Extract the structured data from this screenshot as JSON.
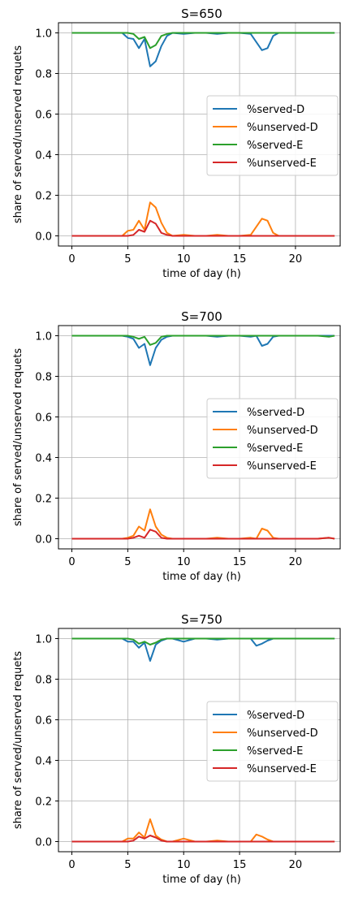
{
  "chart_data": [
    {
      "type": "line",
      "title": "S=650",
      "xlabel": "time of day (h)",
      "ylabel": "share of served/unserved requets",
      "xlim": [
        -1.2,
        24
      ],
      "ylim": [
        -0.05,
        1.05
      ],
      "xticks": [
        0,
        5,
        10,
        15,
        20
      ],
      "yticks": [
        0.0,
        0.2,
        0.4,
        0.6,
        0.8,
        1.0
      ],
      "grid": true,
      "legend": "center-right",
      "series": [
        {
          "name": "%served-D",
          "color": "#1f77b4",
          "x": [
            0,
            1,
            2,
            3,
            4,
            4.5,
            5,
            5.5,
            6,
            6.5,
            7,
            7.5,
            8,
            8.5,
            9,
            10,
            11,
            12,
            13,
            14,
            15,
            16,
            16.5,
            17,
            17.5,
            18,
            18.5,
            19,
            20,
            21,
            22,
            23,
            23.5
          ],
          "y": [
            1.0,
            1.0,
            1.0,
            1.0,
            1.0,
            1.0,
            0.975,
            0.97,
            0.925,
            0.97,
            0.835,
            0.86,
            0.935,
            0.985,
            1.0,
            0.995,
            1.0,
            1.0,
            0.995,
            1.0,
            1.0,
            0.995,
            0.955,
            0.915,
            0.925,
            0.985,
            1.0,
            1.0,
            1.0,
            1.0,
            1.0,
            1.0,
            1.0
          ]
        },
        {
          "name": "%unserved-D",
          "color": "#ff7f0e",
          "x": [
            0,
            1,
            2,
            3,
            4,
            4.5,
            5,
            5.5,
            6,
            6.5,
            7,
            7.5,
            8,
            8.5,
            9,
            10,
            11,
            12,
            13,
            14,
            15,
            16,
            16.5,
            17,
            17.5,
            18,
            18.5,
            19,
            20,
            21,
            22,
            23,
            23.5
          ],
          "y": [
            0.0,
            0.0,
            0.0,
            0.0,
            0.0,
            0.0,
            0.025,
            0.03,
            0.075,
            0.03,
            0.165,
            0.14,
            0.065,
            0.015,
            0.0,
            0.005,
            0.0,
            0.0,
            0.005,
            0.0,
            0.0,
            0.005,
            0.045,
            0.085,
            0.075,
            0.015,
            0.0,
            0.0,
            0.0,
            0.0,
            0.0,
            0.0,
            0.0
          ]
        },
        {
          "name": "%served-E",
          "color": "#2ca02c",
          "x": [
            0,
            1,
            2,
            3,
            4,
            4.5,
            5,
            5.5,
            6,
            6.5,
            7,
            7.5,
            8,
            8.5,
            9,
            10,
            11,
            12,
            13,
            14,
            15,
            16,
            16.5,
            17,
            17.5,
            18,
            18.5,
            19,
            20,
            21,
            22,
            23,
            23.5
          ],
          "y": [
            1.0,
            1.0,
            1.0,
            1.0,
            1.0,
            1.0,
            1.0,
            0.995,
            0.97,
            0.98,
            0.925,
            0.94,
            0.985,
            0.995,
            1.0,
            1.0,
            1.0,
            1.0,
            1.0,
            1.0,
            1.0,
            1.0,
            1.0,
            1.0,
            1.0,
            1.0,
            1.0,
            1.0,
            1.0,
            1.0,
            1.0,
            1.0,
            1.0
          ]
        },
        {
          "name": "%unserved-E",
          "color": "#d62728",
          "x": [
            0,
            1,
            2,
            3,
            4,
            4.5,
            5,
            5.5,
            6,
            6.5,
            7,
            7.5,
            8,
            8.5,
            9,
            10,
            11,
            12,
            13,
            14,
            15,
            16,
            16.5,
            17,
            17.5,
            18,
            18.5,
            19,
            20,
            21,
            22,
            23,
            23.5
          ],
          "y": [
            0.0,
            0.0,
            0.0,
            0.0,
            0.0,
            0.0,
            0.0,
            0.005,
            0.03,
            0.02,
            0.075,
            0.06,
            0.015,
            0.005,
            0.0,
            0.0,
            0.0,
            0.0,
            0.0,
            0.0,
            0.0,
            0.0,
            0.0,
            0.0,
            0.0,
            0.0,
            0.0,
            0.0,
            0.0,
            0.0,
            0.0,
            0.0,
            0.0
          ]
        }
      ]
    },
    {
      "type": "line",
      "title": "S=700",
      "xlabel": "time of day (h)",
      "ylabel": "share of served/unserved requets",
      "xlim": [
        -1.2,
        24
      ],
      "ylim": [
        -0.05,
        1.05
      ],
      "xticks": [
        0,
        5,
        10,
        15,
        20
      ],
      "yticks": [
        0.0,
        0.2,
        0.4,
        0.6,
        0.8,
        1.0
      ],
      "grid": true,
      "legend": "center-right",
      "series": [
        {
          "name": "%served-D",
          "color": "#1f77b4",
          "x": [
            0,
            1,
            2,
            3,
            4,
            4.5,
            5,
            5.5,
            6,
            6.5,
            7,
            7.5,
            8,
            8.5,
            9,
            10,
            11,
            12,
            13,
            14,
            15,
            16,
            16.5,
            17,
            17.5,
            18,
            18.5,
            19,
            20,
            21,
            22,
            23,
            23.5
          ],
          "y": [
            1.0,
            1.0,
            1.0,
            1.0,
            1.0,
            1.0,
            0.995,
            0.985,
            0.94,
            0.96,
            0.855,
            0.94,
            0.98,
            0.995,
            1.0,
            1.0,
            1.0,
            1.0,
            0.995,
            1.0,
            1.0,
            0.995,
            1.0,
            0.95,
            0.96,
            0.995,
            1.0,
            1.0,
            1.0,
            1.0,
            1.0,
            1.0,
            1.0
          ]
        },
        {
          "name": "%unserved-D",
          "color": "#ff7f0e",
          "x": [
            0,
            1,
            2,
            3,
            4,
            4.5,
            5,
            5.5,
            6,
            6.5,
            7,
            7.5,
            8,
            8.5,
            9,
            10,
            11,
            12,
            13,
            14,
            15,
            16,
            16.5,
            17,
            17.5,
            18,
            18.5,
            19,
            20,
            21,
            22,
            23,
            23.5
          ],
          "y": [
            0.0,
            0.0,
            0.0,
            0.0,
            0.0,
            0.0,
            0.005,
            0.015,
            0.06,
            0.04,
            0.145,
            0.06,
            0.02,
            0.005,
            0.0,
            0.0,
            0.0,
            0.0,
            0.005,
            0.0,
            0.0,
            0.005,
            0.0,
            0.05,
            0.04,
            0.005,
            0.0,
            0.0,
            0.0,
            0.0,
            0.0,
            0.005,
            0.0
          ]
        },
        {
          "name": "%served-E",
          "color": "#2ca02c",
          "x": [
            0,
            1,
            2,
            3,
            4,
            4.5,
            5,
            5.5,
            6,
            6.5,
            7,
            7.5,
            8,
            8.5,
            9,
            10,
            11,
            12,
            13,
            14,
            15,
            16,
            16.5,
            17,
            17.5,
            18,
            18.5,
            19,
            20,
            21,
            22,
            23,
            23.5
          ],
          "y": [
            1.0,
            1.0,
            1.0,
            1.0,
            1.0,
            1.0,
            1.0,
            0.995,
            0.985,
            0.995,
            0.955,
            0.965,
            0.995,
            1.0,
            1.0,
            1.0,
            1.0,
            1.0,
            1.0,
            1.0,
            1.0,
            1.0,
            1.0,
            1.0,
            1.0,
            1.0,
            1.0,
            1.0,
            1.0,
            1.0,
            1.0,
            0.995,
            1.0
          ]
        },
        {
          "name": "%unserved-E",
          "color": "#d62728",
          "x": [
            0,
            1,
            2,
            3,
            4,
            4.5,
            5,
            5.5,
            6,
            6.5,
            7,
            7.5,
            8,
            8.5,
            9,
            10,
            11,
            12,
            13,
            14,
            15,
            16,
            16.5,
            17,
            17.5,
            18,
            18.5,
            19,
            20,
            21,
            22,
            23,
            23.5
          ],
          "y": [
            0.0,
            0.0,
            0.0,
            0.0,
            0.0,
            0.0,
            0.0,
            0.005,
            0.015,
            0.005,
            0.045,
            0.035,
            0.005,
            0.0,
            0.0,
            0.0,
            0.0,
            0.0,
            0.0,
            0.0,
            0.0,
            0.0,
            0.0,
            0.0,
            0.0,
            0.0,
            0.0,
            0.0,
            0.0,
            0.0,
            0.0,
            0.005,
            0.0
          ]
        }
      ]
    },
    {
      "type": "line",
      "title": "S=750",
      "xlabel": "time of day (h)",
      "ylabel": "share of served/unserved requets",
      "xlim": [
        -1.2,
        24
      ],
      "ylim": [
        -0.05,
        1.05
      ],
      "xticks": [
        0,
        5,
        10,
        15,
        20
      ],
      "yticks": [
        0.0,
        0.2,
        0.4,
        0.6,
        0.8,
        1.0
      ],
      "grid": true,
      "legend": "center-right",
      "series": [
        {
          "name": "%served-D",
          "color": "#1f77b4",
          "x": [
            0,
            1,
            2,
            3,
            4,
            4.5,
            5,
            5.5,
            6,
            6.5,
            7,
            7.5,
            8,
            8.5,
            9,
            10,
            11,
            12,
            13,
            14,
            15,
            16,
            16.5,
            17,
            17.5,
            18,
            18.5,
            19,
            20,
            21,
            22,
            23,
            23.5
          ],
          "y": [
            1.0,
            1.0,
            1.0,
            1.0,
            1.0,
            1.0,
            0.985,
            0.985,
            0.955,
            0.98,
            0.89,
            0.97,
            0.99,
            1.0,
            1.0,
            0.985,
            1.0,
            1.0,
            0.995,
            1.0,
            1.0,
            1.0,
            0.965,
            0.975,
            0.99,
            1.0,
            1.0,
            1.0,
            1.0,
            1.0,
            1.0,
            1.0,
            1.0
          ]
        },
        {
          "name": "%unserved-D",
          "color": "#ff7f0e",
          "x": [
            0,
            1,
            2,
            3,
            4,
            4.5,
            5,
            5.5,
            6,
            6.5,
            7,
            7.5,
            8,
            8.5,
            9,
            10,
            11,
            12,
            13,
            14,
            15,
            16,
            16.5,
            17,
            17.5,
            18,
            18.5,
            19,
            20,
            21,
            22,
            23,
            23.5
          ],
          "y": [
            0.0,
            0.0,
            0.0,
            0.0,
            0.0,
            0.0,
            0.015,
            0.015,
            0.045,
            0.02,
            0.11,
            0.03,
            0.01,
            0.0,
            0.0,
            0.015,
            0.0,
            0.0,
            0.005,
            0.0,
            0.0,
            0.0,
            0.035,
            0.025,
            0.01,
            0.0,
            0.0,
            0.0,
            0.0,
            0.0,
            0.0,
            0.0,
            0.0
          ]
        },
        {
          "name": "%served-E",
          "color": "#2ca02c",
          "x": [
            0,
            1,
            2,
            3,
            4,
            4.5,
            5,
            5.5,
            6,
            6.5,
            7,
            7.5,
            8,
            8.5,
            9,
            10,
            11,
            12,
            13,
            14,
            15,
            16,
            16.5,
            17,
            17.5,
            18,
            18.5,
            19,
            20,
            21,
            22,
            23,
            23.5
          ],
          "y": [
            1.0,
            1.0,
            1.0,
            1.0,
            1.0,
            1.0,
            1.0,
            0.995,
            0.975,
            0.985,
            0.97,
            0.98,
            0.995,
            1.0,
            1.0,
            1.0,
            1.0,
            1.0,
            1.0,
            1.0,
            1.0,
            1.0,
            1.0,
            1.0,
            1.0,
            1.0,
            1.0,
            1.0,
            1.0,
            1.0,
            1.0,
            1.0,
            1.0
          ]
        },
        {
          "name": "%unserved-E",
          "color": "#d62728",
          "x": [
            0,
            1,
            2,
            3,
            4,
            4.5,
            5,
            5.5,
            6,
            6.5,
            7,
            7.5,
            8,
            8.5,
            9,
            10,
            11,
            12,
            13,
            14,
            15,
            16,
            16.5,
            17,
            17.5,
            18,
            18.5,
            19,
            20,
            21,
            22,
            23,
            23.5
          ],
          "y": [
            0.0,
            0.0,
            0.0,
            0.0,
            0.0,
            0.0,
            0.0,
            0.005,
            0.025,
            0.015,
            0.03,
            0.02,
            0.005,
            0.0,
            0.0,
            0.0,
            0.0,
            0.0,
            0.0,
            0.0,
            0.0,
            0.0,
            0.0,
            0.0,
            0.0,
            0.0,
            0.0,
            0.0,
            0.0,
            0.0,
            0.0,
            0.0,
            0.0
          ]
        }
      ]
    }
  ]
}
